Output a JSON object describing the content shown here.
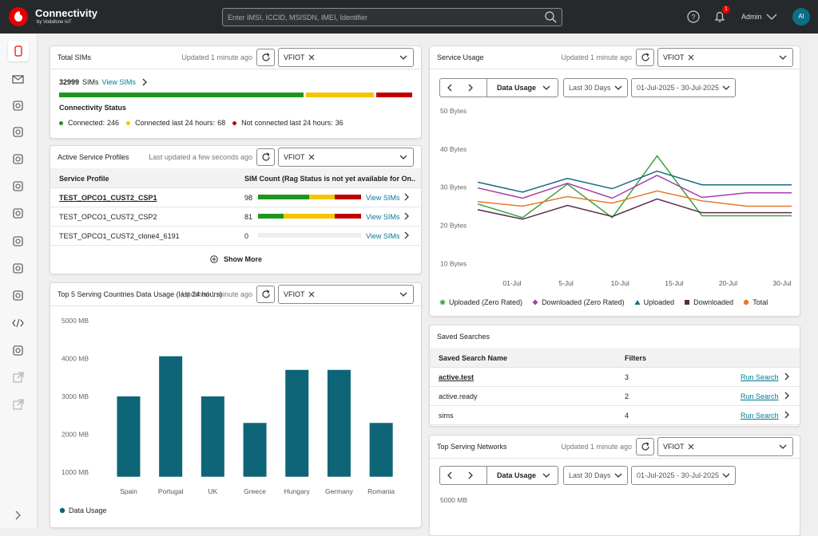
{
  "header": {
    "brand": "Connectivity",
    "brand_sub": "by Vodafone IoT",
    "search_placeholder": "Enter IMSI, ICCID, MSISDN, IMEI, Identifier",
    "notifications": 1,
    "user": "Admin",
    "avatar": "AI"
  },
  "total_sims": {
    "title": "Total SIMs",
    "updated": "Updated 1 minute ago",
    "filter": "VFIOT",
    "count": 32999,
    "unit": "SIMs",
    "link": "View SIMs",
    "status_title": "Connectivity Status",
    "status": [
      {
        "label": "Connected:",
        "count": 246,
        "color": "#1e961e"
      },
      {
        "label": "Connected last 24 hours:",
        "count": 68,
        "color": "#f5c400"
      },
      {
        "label": "Not connected last 24 hours:",
        "count": 36,
        "color": "#c00000"
      }
    ]
  },
  "service_profiles": {
    "title": "Active Service Profiles",
    "updated": "Last updated a few seconds ago",
    "filter": "VFIOT",
    "columns": [
      "Service Profile",
      "SIM Count (Rag Status is not yet available for On..."
    ],
    "rows": [
      {
        "name": "TEST_OPCO1_CUST2_CSP1",
        "count": 98,
        "link": "View SIMs"
      },
      {
        "name": "TEST_OPCO1_CUST2_CSP2",
        "count": 81,
        "link": "View SIMs"
      },
      {
        "name": "TEST_OPCO1_CUST2_clone4_6191",
        "count": 0,
        "link": "View SIMs"
      }
    ],
    "show_more": "Show More"
  },
  "countries": {
    "title": "Top 5 Serving Countries Data Usage (last 24 hours)",
    "updated": "Updated 1 minute ago",
    "filter": "VFIOT"
  },
  "service_usage": {
    "title": "Service Usage",
    "updated": "Updated 1 minute ago",
    "filter": "VFIOT",
    "metric": "Data Usage",
    "period": "Last 30 Days",
    "range": "01-Jul-2025 - 30-Jul-2025"
  },
  "saved_searches": {
    "title": "Saved Searches",
    "columns": [
      "Saved Search Name",
      "Filters"
    ],
    "rows": [
      {
        "name": "active.test",
        "filters": 3,
        "action": "Run Search"
      },
      {
        "name": "active.ready",
        "filters": 2,
        "action": "Run Search"
      },
      {
        "name": "sims",
        "filters": 4,
        "action": "Run Search"
      }
    ]
  },
  "networks": {
    "title": "Top Serving Networks",
    "updated": "Updated 1 minute ago",
    "filter": "VFIOT",
    "metric": "Data Usage",
    "period": "Last 30 Days",
    "range": "01-Jul-2025 - 30-Jul-2025",
    "first_tick": "5000 MB"
  },
  "chart_data": [
    {
      "type": "bar",
      "categories": [
        "Spain",
        "Portugal",
        "UK",
        "Greece",
        "Hungary",
        "Germany",
        "Romania"
      ],
      "series": [
        {
          "name": "Data Usage",
          "color": "#0d6577",
          "values": [
            3000,
            4060,
            3000,
            2300,
            3700,
            3700,
            2300
          ]
        }
      ],
      "ylim": [
        880,
        5130
      ],
      "yticks": [
        {
          "value": 1000,
          "label": "1000 MB"
        },
        {
          "value": 2000,
          "label": "2000 MB"
        },
        {
          "value": 3000,
          "label": "3000 MB"
        },
        {
          "value": 4000,
          "label": "4000 MB"
        },
        {
          "value": 5000,
          "label": "5000 MB"
        }
      ],
      "grid": false,
      "legend": "bottom-left"
    },
    {
      "type": "line",
      "xtick_labels": [
        "01-Jul",
        "5-Jul",
        "10-Jul",
        "15-Jul",
        "20-Jul",
        "30-Jul"
      ],
      "series": [
        {
          "name": "Uploaded (Zero Rated)",
          "color": "#3aa53a",
          "values": [
            25.6,
            22,
            30.8,
            22,
            38.2,
            22.5,
            22.5,
            22.5
          ]
        },
        {
          "name": "Downloaded (Zero Rated)",
          "color": "#a53db0",
          "values": [
            29.8,
            27.1,
            31,
            27.1,
            33.1,
            27.3,
            28.5,
            28.5
          ]
        },
        {
          "name": "Uploaded",
          "color": "#1b6b80",
          "values": [
            31.3,
            28.7,
            32.3,
            29.6,
            34.2,
            30.6,
            30.6,
            30.6
          ]
        },
        {
          "name": "Downloaded",
          "color": "#5b2a4c",
          "values": [
            24.1,
            21.6,
            25.2,
            22.3,
            26.9,
            23.3,
            23.3,
            23.3
          ]
        },
        {
          "name": "Total",
          "color": "#e8792b",
          "values": [
            26.2,
            25,
            27.5,
            25.8,
            29,
            26.4,
            25,
            25
          ]
        }
      ],
      "ylim": [
        6.5,
        52
      ],
      "yticks": [
        {
          "value": 10,
          "label": "10 Bytes"
        },
        {
          "value": 20,
          "label": "20 Bytes"
        },
        {
          "value": 30,
          "label": "30 Bytes"
        },
        {
          "value": 40,
          "label": "40 Bytes"
        },
        {
          "value": 50,
          "label": "50 Bytes"
        }
      ],
      "grid": false,
      "legend": "bottom-left"
    }
  ]
}
